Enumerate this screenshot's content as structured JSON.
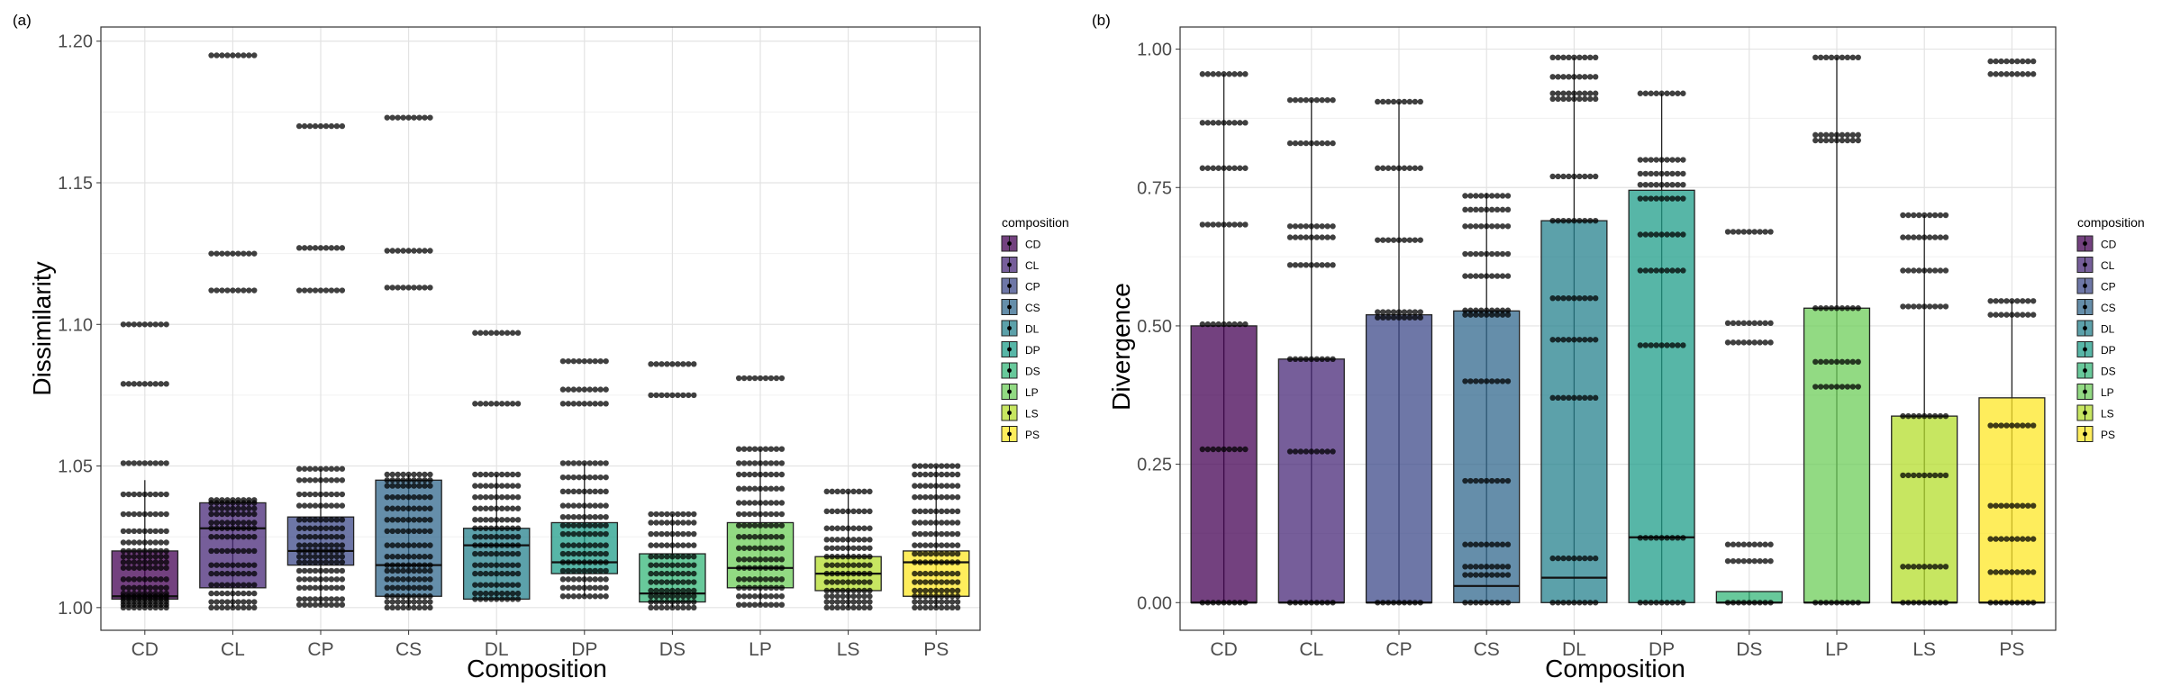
{
  "chart_data": [
    {
      "panel_label": "(a)",
      "type": "boxplot",
      "xlabel": "Composition",
      "ylabel": "Dissimilarity",
      "ylim": [
        0.992,
        1.205
      ],
      "yticks": [
        1.0,
        1.05,
        1.1,
        1.15,
        1.2
      ],
      "ytick_labels": [
        "1.00",
        "1.05",
        "1.10",
        "1.15",
        "1.20"
      ],
      "categories": [
        "CD",
        "CL",
        "CP",
        "CS",
        "DL",
        "DP",
        "DS",
        "LP",
        "LS",
        "PS"
      ],
      "grid": true,
      "legend": {
        "title": "composition",
        "placement": "right",
        "entries": [
          "CD",
          "CL",
          "CP",
          "CS",
          "DL",
          "DP",
          "DS",
          "LP",
          "LS",
          "PS"
        ]
      },
      "boxes": [
        {
          "cat": "CD",
          "q1": 1.003,
          "median": 1.004,
          "q3": 1.02,
          "whisker_low": 1.0,
          "whisker_high": 1.045,
          "points": [
            1.0,
            1.001,
            1.002,
            1.003,
            1.004,
            1.005,
            1.007,
            1.01,
            1.014,
            1.016,
            1.018,
            1.02,
            1.023,
            1.027,
            1.033,
            1.04,
            1.051,
            1.079,
            1.1
          ]
        },
        {
          "cat": "CL",
          "q1": 1.007,
          "median": 1.028,
          "q3": 1.037,
          "whisker_low": 1.0,
          "whisker_high": 1.038,
          "points": [
            1.0,
            1.002,
            1.005,
            1.008,
            1.012,
            1.015,
            1.02,
            1.025,
            1.028,
            1.03,
            1.033,
            1.035,
            1.037,
            1.038,
            1.112,
            1.125,
            1.195
          ]
        },
        {
          "cat": "CP",
          "q1": 1.015,
          "median": 1.02,
          "q3": 1.032,
          "whisker_low": 1.001,
          "whisker_high": 1.049,
          "points": [
            1.001,
            1.003,
            1.007,
            1.01,
            1.013,
            1.016,
            1.018,
            1.02,
            1.022,
            1.025,
            1.028,
            1.031,
            1.036,
            1.04,
            1.045,
            1.049,
            1.112,
            1.127,
            1.17
          ]
        },
        {
          "cat": "CS",
          "q1": 1.004,
          "median": 1.015,
          "q3": 1.045,
          "whisker_low": 1.0,
          "whisker_high": 1.047,
          "points": [
            1.0,
            1.002,
            1.004,
            1.007,
            1.01,
            1.013,
            1.015,
            1.018,
            1.022,
            1.027,
            1.031,
            1.035,
            1.039,
            1.043,
            1.045,
            1.047,
            1.113,
            1.126,
            1.173
          ]
        },
        {
          "cat": "DL",
          "q1": 1.003,
          "median": 1.022,
          "q3": 1.028,
          "whisker_low": 1.003,
          "whisker_high": 1.047,
          "points": [
            1.003,
            1.005,
            1.008,
            1.012,
            1.015,
            1.019,
            1.022,
            1.025,
            1.028,
            1.031,
            1.035,
            1.039,
            1.043,
            1.047,
            1.072,
            1.097
          ]
        },
        {
          "cat": "DP",
          "q1": 1.012,
          "median": 1.016,
          "q3": 1.03,
          "whisker_low": 1.004,
          "whisker_high": 1.051,
          "points": [
            1.004,
            1.007,
            1.01,
            1.013,
            1.016,
            1.019,
            1.022,
            1.026,
            1.029,
            1.032,
            1.036,
            1.041,
            1.046,
            1.051,
            1.072,
            1.077,
            1.087
          ]
        },
        {
          "cat": "DS",
          "q1": 1.002,
          "median": 1.005,
          "q3": 1.019,
          "whisker_low": 1.0,
          "whisker_high": 1.033,
          "points": [
            1.0,
            1.002,
            1.004,
            1.006,
            1.009,
            1.012,
            1.015,
            1.018,
            1.022,
            1.026,
            1.03,
            1.033,
            1.075,
            1.086
          ]
        },
        {
          "cat": "LP",
          "q1": 1.007,
          "median": 1.014,
          "q3": 1.03,
          "whisker_low": 1.001,
          "whisker_high": 1.056,
          "points": [
            1.001,
            1.004,
            1.007,
            1.01,
            1.014,
            1.017,
            1.021,
            1.025,
            1.029,
            1.033,
            1.037,
            1.042,
            1.047,
            1.051,
            1.056,
            1.081
          ]
        },
        {
          "cat": "LS",
          "q1": 1.006,
          "median": 1.012,
          "q3": 1.018,
          "whisker_low": 1.0,
          "whisker_high": 1.041,
          "points": [
            1.0,
            1.002,
            1.004,
            1.006,
            1.009,
            1.012,
            1.015,
            1.018,
            1.021,
            1.024,
            1.028,
            1.034,
            1.041
          ]
        },
        {
          "cat": "PS",
          "q1": 1.004,
          "median": 1.016,
          "q3": 1.02,
          "whisker_low": 1.0,
          "whisker_high": 1.05,
          "points": [
            1.0,
            1.002,
            1.004,
            1.006,
            1.009,
            1.012,
            1.016,
            1.019,
            1.022,
            1.026,
            1.03,
            1.034,
            1.039,
            1.043,
            1.047,
            1.05
          ]
        }
      ]
    },
    {
      "panel_label": "(b)",
      "type": "boxplot",
      "xlabel": "Composition",
      "ylabel": "Divergence",
      "ylim": [
        -0.05,
        1.04
      ],
      "yticks": [
        0.0,
        0.25,
        0.5,
        0.75,
        1.0
      ],
      "ytick_labels": [
        "0.00",
        "0.25",
        "0.50",
        "0.75",
        "1.00"
      ],
      "categories": [
        "CD",
        "CL",
        "CP",
        "CS",
        "DL",
        "DP",
        "DS",
        "LP",
        "LS",
        "PS"
      ],
      "grid": true,
      "legend": {
        "title": "composition",
        "placement": "right",
        "entries": [
          "CD",
          "CL",
          "CP",
          "CS",
          "DL",
          "DP",
          "DS",
          "LP",
          "LS",
          "PS"
        ]
      },
      "boxes": [
        {
          "cat": "CD",
          "q1": 0.0,
          "median": 0.0,
          "q3": 0.5,
          "whisker_low": 0.0,
          "whisker_high": 0.955,
          "points": [
            0.0,
            0.277,
            0.503,
            0.683,
            0.785,
            0.867,
            0.955
          ]
        },
        {
          "cat": "CL",
          "q1": 0.0,
          "median": 0.0,
          "q3": 0.44,
          "whisker_low": 0.0,
          "whisker_high": 0.908,
          "points": [
            0.0,
            0.273,
            0.44,
            0.61,
            0.66,
            0.68,
            0.83,
            0.908
          ]
        },
        {
          "cat": "CP",
          "q1": 0.0,
          "median": 0.0,
          "q3": 0.52,
          "whisker_low": 0.0,
          "whisker_high": 0.905,
          "points": [
            0.0,
            0.515,
            0.525,
            0.655,
            0.785,
            0.905
          ]
        },
        {
          "cat": "CS",
          "q1": 0.0,
          "median": 0.03,
          "q3": 0.527,
          "whisker_low": 0.0,
          "whisker_high": 0.74,
          "points": [
            0.0,
            0.05,
            0.065,
            0.105,
            0.22,
            0.4,
            0.52,
            0.528,
            0.59,
            0.63,
            0.68,
            0.71,
            0.735
          ]
        },
        {
          "cat": "DL",
          "q1": 0.0,
          "median": 0.045,
          "q3": 0.69,
          "whisker_low": 0.0,
          "whisker_high": 0.985,
          "points": [
            0.0,
            0.08,
            0.37,
            0.475,
            0.55,
            0.69,
            0.77,
            0.91,
            0.92,
            0.95,
            0.985
          ]
        },
        {
          "cat": "DP",
          "q1": 0.0,
          "median": 0.118,
          "q3": 0.745,
          "whisker_low": 0.0,
          "whisker_high": 0.92,
          "points": [
            0.0,
            0.117,
            0.465,
            0.6,
            0.665,
            0.73,
            0.755,
            0.775,
            0.8,
            0.92
          ]
        },
        {
          "cat": "DS",
          "q1": 0.0,
          "median": 0.0,
          "q3": 0.02,
          "whisker_low": 0.0,
          "whisker_high": 0.02,
          "points": [
            0.0,
            0.075,
            0.105,
            0.47,
            0.505,
            0.67
          ]
        },
        {
          "cat": "LP",
          "q1": 0.0,
          "median": 0.0,
          "q3": 0.532,
          "whisker_low": 0.0,
          "whisker_high": 0.985,
          "points": [
            0.0,
            0.39,
            0.435,
            0.532,
            0.835,
            0.845,
            0.985
          ]
        },
        {
          "cat": "LS",
          "q1": 0.0,
          "median": 0.0,
          "q3": 0.337,
          "whisker_low": 0.0,
          "whisker_high": 0.7,
          "points": [
            0.0,
            0.065,
            0.23,
            0.337,
            0.535,
            0.6,
            0.66,
            0.7
          ]
        },
        {
          "cat": "PS",
          "q1": 0.0,
          "median": 0.0,
          "q3": 0.37,
          "whisker_low": 0.0,
          "whisker_high": 0.545,
          "points": [
            0.0,
            0.055,
            0.115,
            0.175,
            0.32,
            0.52,
            0.545,
            0.955,
            0.978
          ]
        }
      ]
    }
  ],
  "colors": {
    "CD": "#440154",
    "CL": "#482878",
    "CP": "#3E4A89",
    "CS": "#31688E",
    "DL": "#26828E",
    "DP": "#1F9E89",
    "DS": "#35B779",
    "LP": "#6DCD59",
    "LS": "#B4DE2C",
    "PS": "#FDE725"
  }
}
